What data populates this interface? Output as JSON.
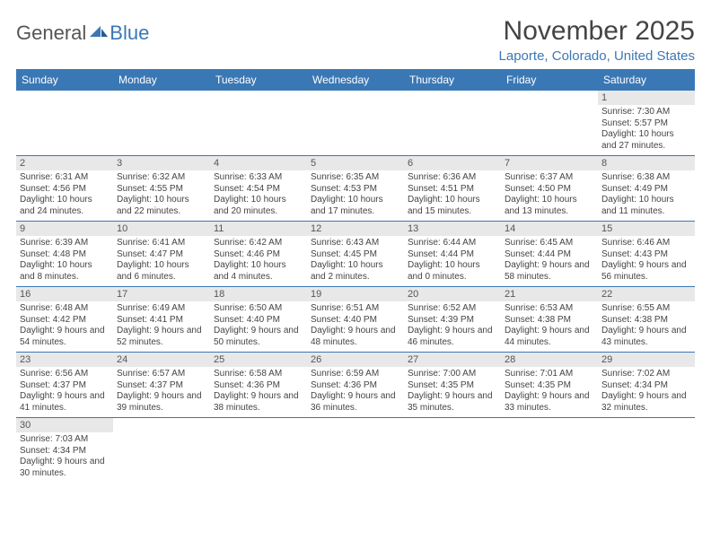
{
  "logo": {
    "text1": "General",
    "text2": "Blue"
  },
  "title": "November 2025",
  "location": "Laporte, Colorado, United States",
  "colors": {
    "header_bg": "#3a78b5",
    "header_text": "#ffffff",
    "daynum_bg": "#e8e8e8",
    "border": "#3a78b5",
    "text": "#444444",
    "location_text": "#3a78b5"
  },
  "day_names": [
    "Sunday",
    "Monday",
    "Tuesday",
    "Wednesday",
    "Thursday",
    "Friday",
    "Saturday"
  ],
  "weeks": [
    [
      {
        "num": "",
        "lines": []
      },
      {
        "num": "",
        "lines": []
      },
      {
        "num": "",
        "lines": []
      },
      {
        "num": "",
        "lines": []
      },
      {
        "num": "",
        "lines": []
      },
      {
        "num": "",
        "lines": []
      },
      {
        "num": "1",
        "lines": [
          "Sunrise: 7:30 AM",
          "Sunset: 5:57 PM",
          "Daylight: 10 hours and 27 minutes."
        ]
      }
    ],
    [
      {
        "num": "2",
        "lines": [
          "Sunrise: 6:31 AM",
          "Sunset: 4:56 PM",
          "Daylight: 10 hours and 24 minutes."
        ]
      },
      {
        "num": "3",
        "lines": [
          "Sunrise: 6:32 AM",
          "Sunset: 4:55 PM",
          "Daylight: 10 hours and 22 minutes."
        ]
      },
      {
        "num": "4",
        "lines": [
          "Sunrise: 6:33 AM",
          "Sunset: 4:54 PM",
          "Daylight: 10 hours and 20 minutes."
        ]
      },
      {
        "num": "5",
        "lines": [
          "Sunrise: 6:35 AM",
          "Sunset: 4:53 PM",
          "Daylight: 10 hours and 17 minutes."
        ]
      },
      {
        "num": "6",
        "lines": [
          "Sunrise: 6:36 AM",
          "Sunset: 4:51 PM",
          "Daylight: 10 hours and 15 minutes."
        ]
      },
      {
        "num": "7",
        "lines": [
          "Sunrise: 6:37 AM",
          "Sunset: 4:50 PM",
          "Daylight: 10 hours and 13 minutes."
        ]
      },
      {
        "num": "8",
        "lines": [
          "Sunrise: 6:38 AM",
          "Sunset: 4:49 PM",
          "Daylight: 10 hours and 11 minutes."
        ]
      }
    ],
    [
      {
        "num": "9",
        "lines": [
          "Sunrise: 6:39 AM",
          "Sunset: 4:48 PM",
          "Daylight: 10 hours and 8 minutes."
        ]
      },
      {
        "num": "10",
        "lines": [
          "Sunrise: 6:41 AM",
          "Sunset: 4:47 PM",
          "Daylight: 10 hours and 6 minutes."
        ]
      },
      {
        "num": "11",
        "lines": [
          "Sunrise: 6:42 AM",
          "Sunset: 4:46 PM",
          "Daylight: 10 hours and 4 minutes."
        ]
      },
      {
        "num": "12",
        "lines": [
          "Sunrise: 6:43 AM",
          "Sunset: 4:45 PM",
          "Daylight: 10 hours and 2 minutes."
        ]
      },
      {
        "num": "13",
        "lines": [
          "Sunrise: 6:44 AM",
          "Sunset: 4:44 PM",
          "Daylight: 10 hours and 0 minutes."
        ]
      },
      {
        "num": "14",
        "lines": [
          "Sunrise: 6:45 AM",
          "Sunset: 4:44 PM",
          "Daylight: 9 hours and 58 minutes."
        ]
      },
      {
        "num": "15",
        "lines": [
          "Sunrise: 6:46 AM",
          "Sunset: 4:43 PM",
          "Daylight: 9 hours and 56 minutes."
        ]
      }
    ],
    [
      {
        "num": "16",
        "lines": [
          "Sunrise: 6:48 AM",
          "Sunset: 4:42 PM",
          "Daylight: 9 hours and 54 minutes."
        ]
      },
      {
        "num": "17",
        "lines": [
          "Sunrise: 6:49 AM",
          "Sunset: 4:41 PM",
          "Daylight: 9 hours and 52 minutes."
        ]
      },
      {
        "num": "18",
        "lines": [
          "Sunrise: 6:50 AM",
          "Sunset: 4:40 PM",
          "Daylight: 9 hours and 50 minutes."
        ]
      },
      {
        "num": "19",
        "lines": [
          "Sunrise: 6:51 AM",
          "Sunset: 4:40 PM",
          "Daylight: 9 hours and 48 minutes."
        ]
      },
      {
        "num": "20",
        "lines": [
          "Sunrise: 6:52 AM",
          "Sunset: 4:39 PM",
          "Daylight: 9 hours and 46 minutes."
        ]
      },
      {
        "num": "21",
        "lines": [
          "Sunrise: 6:53 AM",
          "Sunset: 4:38 PM",
          "Daylight: 9 hours and 44 minutes."
        ]
      },
      {
        "num": "22",
        "lines": [
          "Sunrise: 6:55 AM",
          "Sunset: 4:38 PM",
          "Daylight: 9 hours and 43 minutes."
        ]
      }
    ],
    [
      {
        "num": "23",
        "lines": [
          "Sunrise: 6:56 AM",
          "Sunset: 4:37 PM",
          "Daylight: 9 hours and 41 minutes."
        ]
      },
      {
        "num": "24",
        "lines": [
          "Sunrise: 6:57 AM",
          "Sunset: 4:37 PM",
          "Daylight: 9 hours and 39 minutes."
        ]
      },
      {
        "num": "25",
        "lines": [
          "Sunrise: 6:58 AM",
          "Sunset: 4:36 PM",
          "Daylight: 9 hours and 38 minutes."
        ]
      },
      {
        "num": "26",
        "lines": [
          "Sunrise: 6:59 AM",
          "Sunset: 4:36 PM",
          "Daylight: 9 hours and 36 minutes."
        ]
      },
      {
        "num": "27",
        "lines": [
          "Sunrise: 7:00 AM",
          "Sunset: 4:35 PM",
          "Daylight: 9 hours and 35 minutes."
        ]
      },
      {
        "num": "28",
        "lines": [
          "Sunrise: 7:01 AM",
          "Sunset: 4:35 PM",
          "Daylight: 9 hours and 33 minutes."
        ]
      },
      {
        "num": "29",
        "lines": [
          "Sunrise: 7:02 AM",
          "Sunset: 4:34 PM",
          "Daylight: 9 hours and 32 minutes."
        ]
      }
    ],
    [
      {
        "num": "30",
        "lines": [
          "Sunrise: 7:03 AM",
          "Sunset: 4:34 PM",
          "Daylight: 9 hours and 30 minutes."
        ]
      },
      {
        "num": "",
        "lines": []
      },
      {
        "num": "",
        "lines": []
      },
      {
        "num": "",
        "lines": []
      },
      {
        "num": "",
        "lines": []
      },
      {
        "num": "",
        "lines": []
      },
      {
        "num": "",
        "lines": []
      }
    ]
  ]
}
